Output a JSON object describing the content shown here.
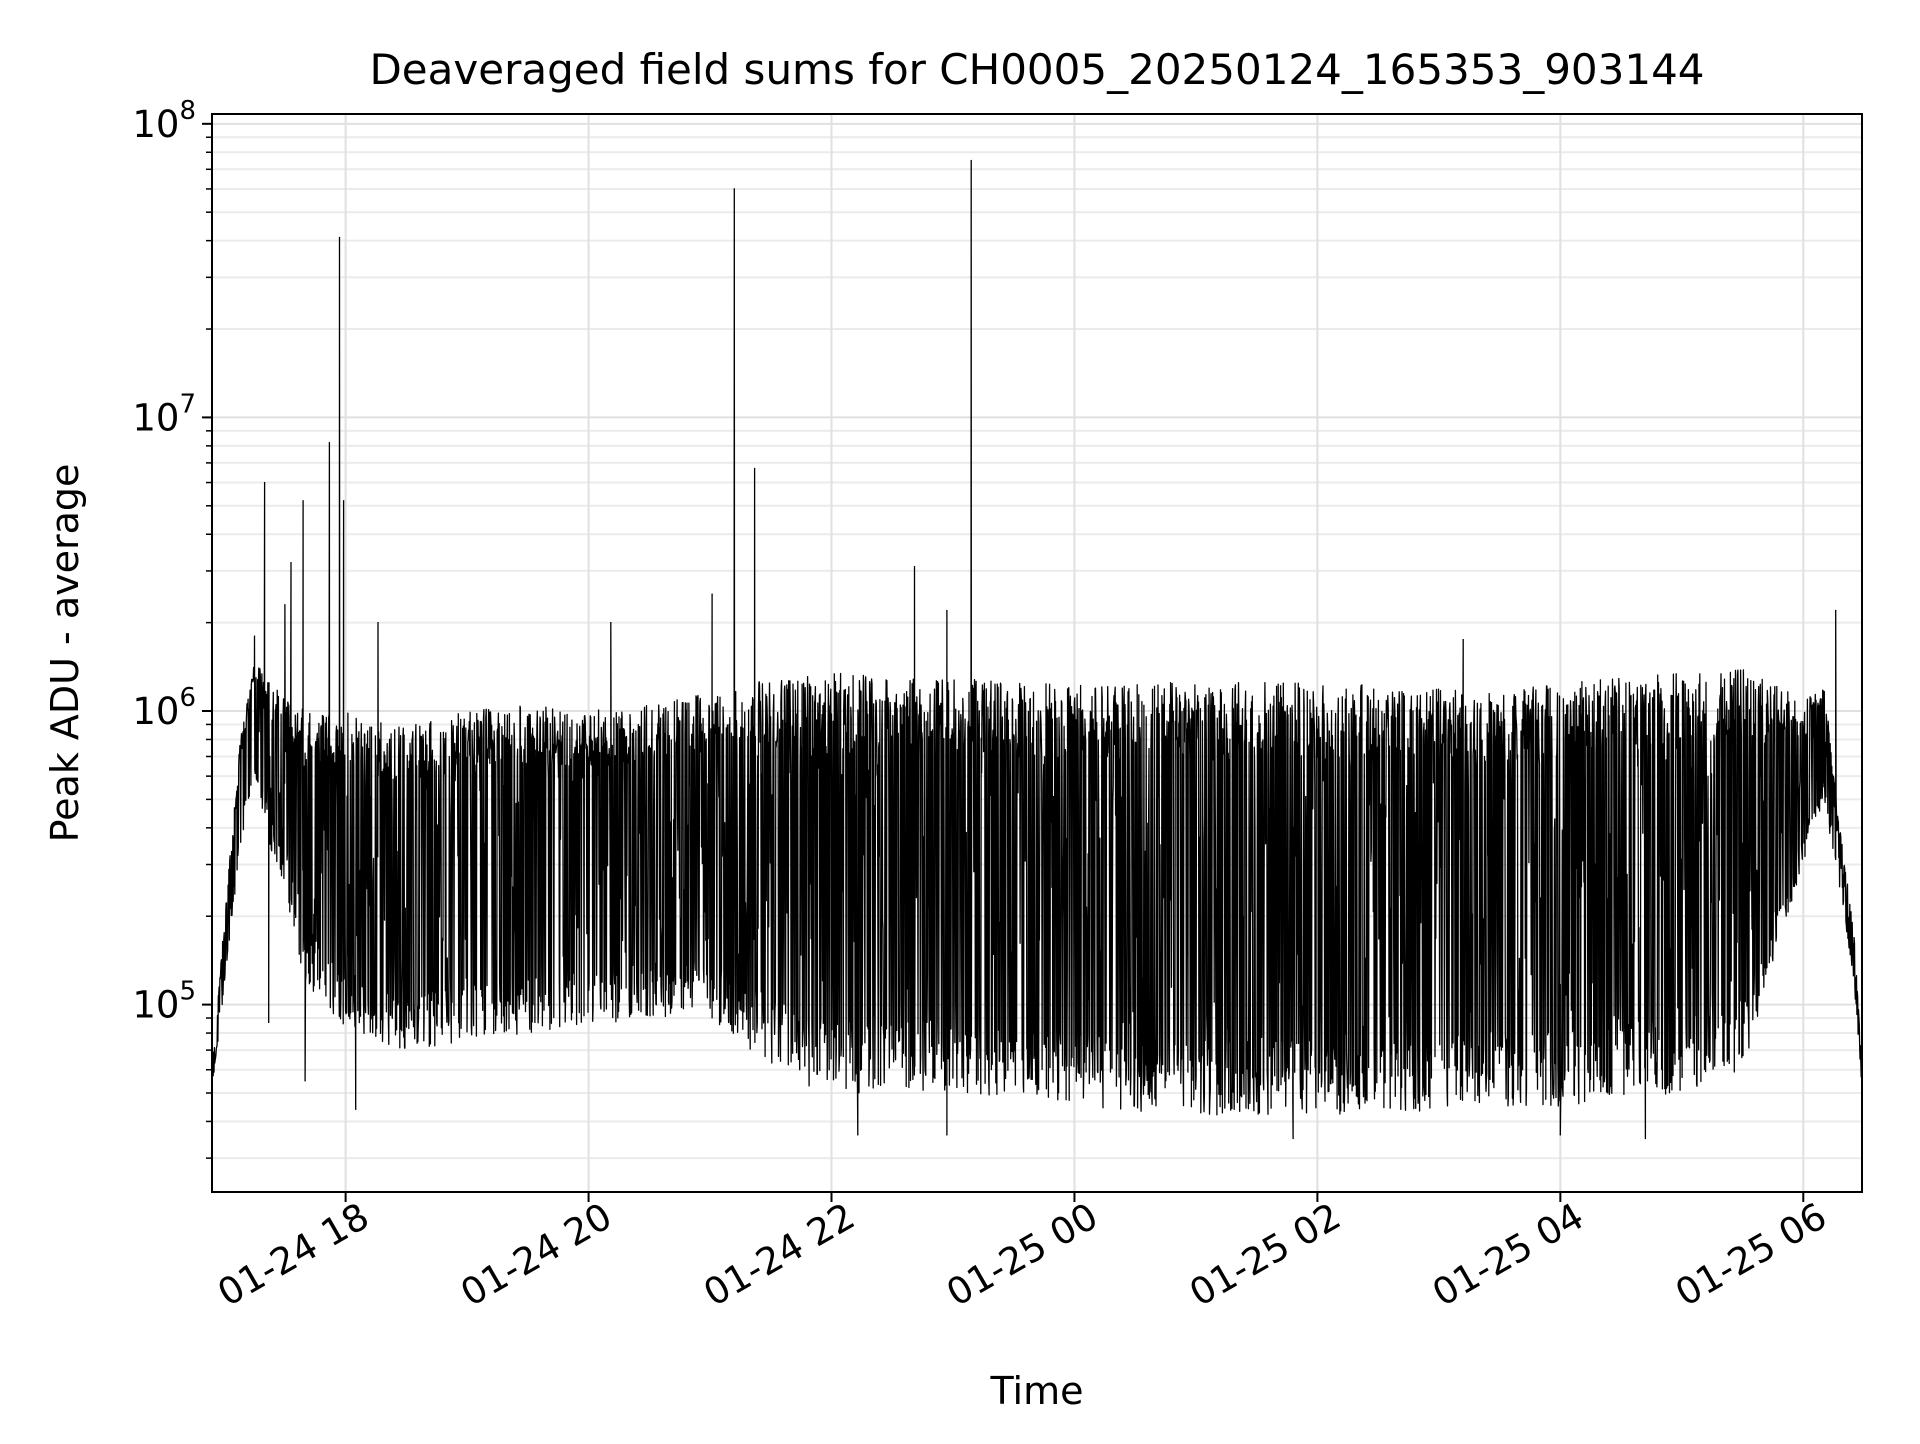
{
  "chart_data": {
    "type": "line",
    "title": "Deaveraged field sums for CH0005_20250124_165353_903144",
    "xlabel": "Time",
    "ylabel": "Peak ADU - average",
    "yscale": "log",
    "grid": true,
    "grid_minor": true,
    "xlim": [
      "2025-01-24 16:54",
      "2025-01-25 06:29"
    ],
    "ylim": [
      23000,
      108000000
    ],
    "x_ticks": [
      {
        "value": "2025-01-24 18:00",
        "label": "01-24 18"
      },
      {
        "value": "2025-01-24 20:00",
        "label": "01-24 20"
      },
      {
        "value": "2025-01-24 22:00",
        "label": "01-24 22"
      },
      {
        "value": "2025-01-25 00:00",
        "label": "01-25 00"
      },
      {
        "value": "2025-01-25 02:00",
        "label": "01-25 02"
      },
      {
        "value": "2025-01-25 04:00",
        "label": "01-25 04"
      },
      {
        "value": "2025-01-25 06:00",
        "label": "01-25 06"
      }
    ],
    "y_ticks": [
      {
        "value": 100000,
        "base": "10",
        "exp": "5"
      },
      {
        "value": 1000000,
        "base": "10",
        "exp": "6"
      },
      {
        "value": 10000000,
        "base": "10",
        "exp": "7"
      },
      {
        "value": 100000000,
        "base": "10",
        "exp": "8"
      }
    ],
    "series": [
      {
        "color": "#000000",
        "envelope": [
          {
            "t": "2025-01-24 16:54",
            "low": 52000,
            "high": 60000
          },
          {
            "t": "2025-01-24 17:00",
            "low": 110000,
            "high": 190000
          },
          {
            "t": "2025-01-24 17:08",
            "low": 350000,
            "high": 800000
          },
          {
            "t": "2025-01-24 17:15",
            "low": 600000,
            "high": 1500000
          },
          {
            "t": "2025-01-24 17:25",
            "low": 300000,
            "high": 1200000
          },
          {
            "t": "2025-01-24 17:40",
            "low": 120000,
            "high": 1000000
          },
          {
            "t": "2025-01-24 18:00",
            "low": 80000,
            "high": 1000000
          },
          {
            "t": "2025-01-24 18:30",
            "low": 70000,
            "high": 900000
          },
          {
            "t": "2025-01-24 19:00",
            "low": 75000,
            "high": 1000000
          },
          {
            "t": "2025-01-24 19:30",
            "low": 80000,
            "high": 1050000
          },
          {
            "t": "2025-01-24 20:00",
            "low": 85000,
            "high": 1000000
          },
          {
            "t": "2025-01-24 20:30",
            "low": 90000,
            "high": 1050000
          },
          {
            "t": "2025-01-24 21:00",
            "low": 90000,
            "high": 1150000
          },
          {
            "t": "2025-01-24 21:20",
            "low": 70000,
            "high": 1250000
          },
          {
            "t": "2025-01-24 21:40",
            "low": 55000,
            "high": 1300000
          },
          {
            "t": "2025-01-24 22:00",
            "low": 50000,
            "high": 1350000
          },
          {
            "t": "2025-01-24 22:30",
            "low": 50000,
            "high": 1300000
          },
          {
            "t": "2025-01-24 23:00",
            "low": 50000,
            "high": 1300000
          },
          {
            "t": "2025-01-24 23:30",
            "low": 48000,
            "high": 1250000
          },
          {
            "t": "2025-01-25 00:00",
            "low": 45000,
            "high": 1250000
          },
          {
            "t": "2025-01-25 01:00",
            "low": 42000,
            "high": 1250000
          },
          {
            "t": "2025-01-25 02:00",
            "low": 42000,
            "high": 1250000
          },
          {
            "t": "2025-01-25 03:00",
            "low": 43000,
            "high": 1200000
          },
          {
            "t": "2025-01-25 03:30",
            "low": 45000,
            "high": 1200000
          },
          {
            "t": "2025-01-25 04:00",
            "low": 45000,
            "high": 1250000
          },
          {
            "t": "2025-01-25 05:00",
            "low": 50000,
            "high": 1350000
          },
          {
            "t": "2025-01-25 05:30",
            "low": 60000,
            "high": 1400000
          },
          {
            "t": "2025-01-25 06:00",
            "low": 300000,
            "high": 1100000
          },
          {
            "t": "2025-01-25 06:10",
            "low": 500000,
            "high": 1300000
          },
          {
            "t": "2025-01-25 06:18",
            "low": 250000,
            "high": 400000
          },
          {
            "t": "2025-01-25 06:25",
            "low": 120000,
            "high": 180000
          },
          {
            "t": "2025-01-25 06:29",
            "low": 52000,
            "high": 60000
          }
        ],
        "spikes": [
          {
            "t": "2025-01-24 17:05",
            "value": 280000
          },
          {
            "t": "2025-01-24 17:15",
            "value": 1800000
          },
          {
            "t": "2025-01-24 17:20",
            "value": 6000000
          },
          {
            "t": "2025-01-24 17:22",
            "value": 87000
          },
          {
            "t": "2025-01-24 17:30",
            "value": 2300000
          },
          {
            "t": "2025-01-24 17:33",
            "value": 3200000
          },
          {
            "t": "2025-01-24 17:39",
            "value": 5200000
          },
          {
            "t": "2025-01-24 17:40",
            "value": 55000
          },
          {
            "t": "2025-01-24 17:52",
            "value": 8200000
          },
          {
            "t": "2025-01-24 17:57",
            "value": 41000000
          },
          {
            "t": "2025-01-24 17:59",
            "value": 5200000
          },
          {
            "t": "2025-01-24 18:05",
            "value": 44000
          },
          {
            "t": "2025-01-24 18:16",
            "value": 2000000
          },
          {
            "t": "2025-01-24 20:11",
            "value": 2000000
          },
          {
            "t": "2025-01-24 21:01",
            "value": 2500000
          },
          {
            "t": "2025-01-24 21:12",
            "value": 60000000
          },
          {
            "t": "2025-01-24 21:22",
            "value": 6700000
          },
          {
            "t": "2025-01-24 22:13",
            "value": 36000
          },
          {
            "t": "2025-01-24 22:41",
            "value": 3100000
          },
          {
            "t": "2025-01-24 22:57",
            "value": 2200000
          },
          {
            "t": "2025-01-24 22:57",
            "value": 36000
          },
          {
            "t": "2025-01-24 23:09",
            "value": 75000000
          },
          {
            "t": "2025-01-25 01:48",
            "value": 35000
          },
          {
            "t": "2025-01-25 03:12",
            "value": 1750000
          },
          {
            "t": "2025-01-25 04:00",
            "value": 36000
          },
          {
            "t": "2025-01-25 04:42",
            "value": 35000
          },
          {
            "t": "2025-01-25 06:16",
            "value": 2200000
          }
        ]
      }
    ]
  }
}
